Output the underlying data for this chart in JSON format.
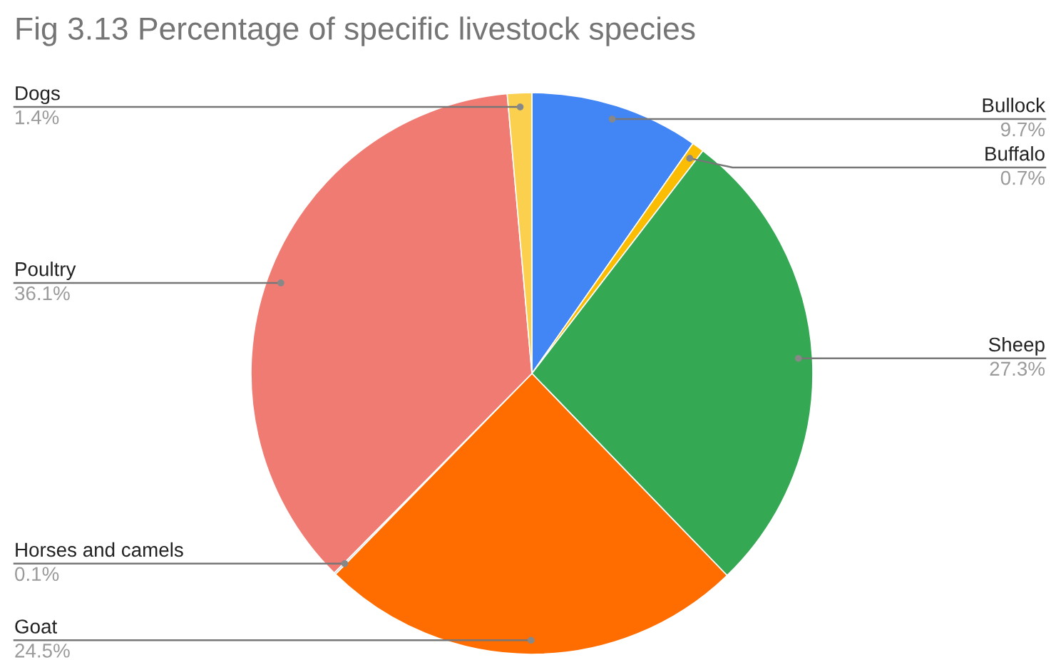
{
  "chart_data": {
    "type": "pie",
    "title": "Fig 3.13 Percentage of specific livestock species",
    "categories": [
      "Bullock",
      "Buffalo",
      "Sheep",
      "Goat",
      "Horses and camels",
      "Poultry",
      "Dogs"
    ],
    "values": [
      9.7,
      0.7,
      27.3,
      24.5,
      0.1,
      36.1,
      1.4
    ],
    "value_labels": [
      "9.7%",
      "0.7%",
      "27.3%",
      "24.5%",
      "0.1%",
      "36.1%",
      "1.4%"
    ],
    "colors": [
      "#4285f4",
      "#fbbc04",
      "#34a853",
      "#ff6d01",
      "#a9b6c2",
      "#f07b72",
      "#fcd04f"
    ],
    "legend": false
  }
}
